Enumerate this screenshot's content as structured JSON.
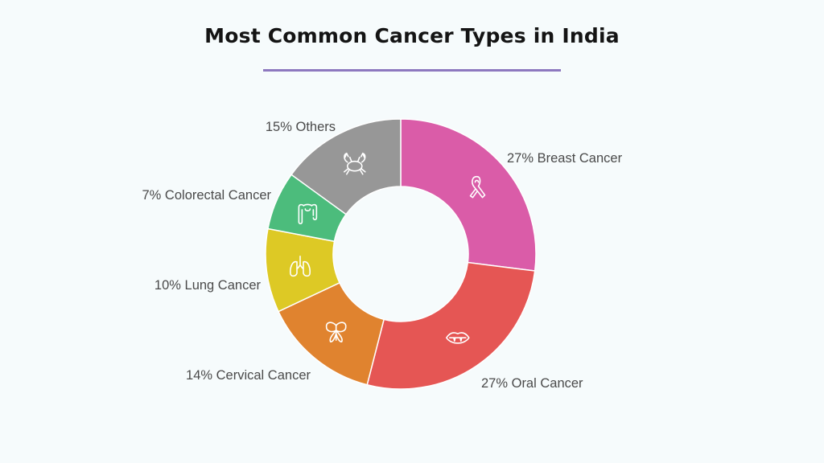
{
  "title": "Most Common Cancer Types in India",
  "colors": {
    "background": "#f6fbfc",
    "underline": "#8d78bf",
    "label_text": "#4a4a4a"
  },
  "chart_data": {
    "type": "pie",
    "variant": "donut",
    "title": "Most Common Cancer Types in India",
    "start_angle_deg": 0,
    "direction": "clockwise",
    "slices": [
      {
        "label": "27% Breast Cancer",
        "category": "Breast Cancer",
        "value": 27,
        "color": "#da5ca8",
        "icon": "ribbon-icon"
      },
      {
        "label": "27% Oral Cancer",
        "category": "Oral Cancer",
        "value": 27,
        "color": "#e55654",
        "icon": "mouth-icon"
      },
      {
        "label": "14% Cervical Cancer",
        "category": "Cervical Cancer",
        "value": 14,
        "color": "#e0832f",
        "icon": "butterfly-ribbon-icon"
      },
      {
        "label": "10% Lung Cancer",
        "category": "Lung Cancer",
        "value": 10,
        "color": "#ddc925",
        "icon": "lungs-icon"
      },
      {
        "label": "7% Colorectal Cancer",
        "category": "Colorectal Cancer",
        "value": 7,
        "color": "#4cbc7c",
        "icon": "intestine-icon"
      },
      {
        "label": "15% Others",
        "category": "Others",
        "value": 15,
        "color": "#979797",
        "icon": "crab-icon"
      }
    ]
  }
}
